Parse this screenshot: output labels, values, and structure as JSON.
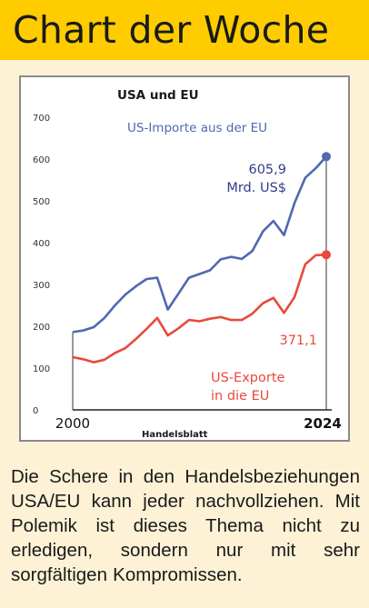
{
  "header": {
    "title": "Chart der Woche",
    "accent_color": "#ffcc00"
  },
  "chart_data": {
    "type": "line",
    "title": "USA und EU",
    "source": "Handelsblatt",
    "ylim": [
      0,
      700
    ],
    "y_ticks": [
      0,
      100,
      200,
      300,
      400,
      500,
      600,
      700
    ],
    "x_range": [
      2000,
      2024
    ],
    "x_tick_labels": [
      "2000",
      "2024"
    ],
    "grid": false,
    "series": [
      {
        "name": "US-Importe aus der EU",
        "color": "#5068b0",
        "end_label": [
          "605,9",
          "Mrd. US$"
        ],
        "x": [
          2000,
          2001,
          2002,
          2003,
          2004,
          2005,
          2006,
          2007,
          2008,
          2009,
          2010,
          2011,
          2012,
          2013,
          2014,
          2015,
          2016,
          2017,
          2018,
          2019,
          2020,
          2021,
          2022,
          2023,
          2024
        ],
        "y": [
          186,
          190,
          198,
          220,
          250,
          276,
          296,
          313,
          316,
          240,
          278,
          316,
          325,
          334,
          360,
          366,
          361,
          380,
          427,
          452,
          418,
          495,
          555,
          578,
          605.9
        ]
      },
      {
        "name": "US-Exporte in die EU",
        "name_lines": [
          "US-Exporte",
          "in die EU"
        ],
        "color": "#e84a3a",
        "end_label": [
          "371,1"
        ],
        "x": [
          2000,
          2001,
          2002,
          2003,
          2004,
          2005,
          2006,
          2007,
          2008,
          2009,
          2010,
          2011,
          2012,
          2013,
          2014,
          2015,
          2016,
          2017,
          2018,
          2019,
          2020,
          2021,
          2022,
          2023,
          2024
        ],
        "y": [
          126,
          121,
          114,
          120,
          136,
          148,
          170,
          194,
          220,
          178,
          195,
          215,
          212,
          218,
          222,
          215,
          215,
          230,
          255,
          268,
          232,
          270,
          348,
          370,
          371.1
        ]
      }
    ]
  },
  "caption": "Die Schere in den Handelsbeziehungen USA/EU kann jeder nachvollziehen. Mit Polemik ist dieses Thema nicht zu erledigen, sondern nur mit sehr sorgfältigen Kompromissen."
}
